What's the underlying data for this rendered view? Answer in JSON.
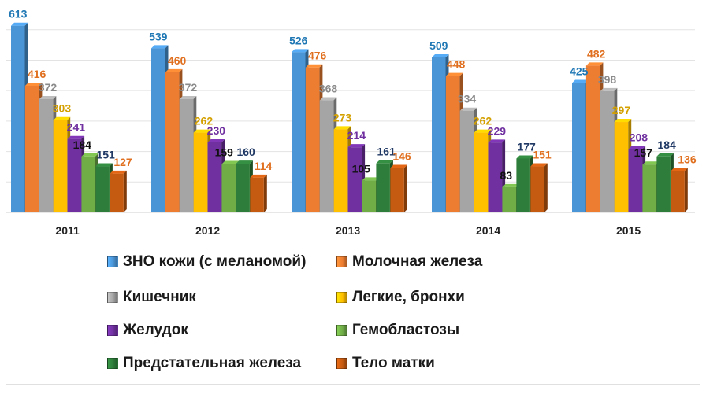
{
  "chart_data": {
    "type": "bar",
    "categories": [
      "2011",
      "2012",
      "2013",
      "2014",
      "2015"
    ],
    "series": [
      {
        "name": "ЗНО  кожи (с меланомой)",
        "color": "#4a95d6",
        "label_color": "#1f77b4",
        "values": [
          613,
          539,
          526,
          509,
          425
        ]
      },
      {
        "name": "Молочная железа",
        "color": "#ed7d31",
        "label_color": "#e07020",
        "values": [
          416,
          460,
          476,
          448,
          482
        ]
      },
      {
        "name": "Кишечник",
        "color": "#a5a5a5",
        "label_color": "#8a8a8a",
        "values": [
          372,
          372,
          368,
          334,
          398
        ]
      },
      {
        "name": "Легкие, бронхи",
        "color": "#ffc000",
        "label_color": "#d4a000",
        "values": [
          303,
          262,
          273,
          262,
          297
        ]
      },
      {
        "name": "Желудок",
        "color": "#7030a0",
        "label_color": "#7030a0",
        "values": [
          241,
          230,
          214,
          229,
          208
        ]
      },
      {
        "name": "Гемобластозы",
        "color": "#70ad47",
        "label_color": "#111111",
        "values": [
          184,
          159,
          105,
          83,
          157
        ]
      },
      {
        "name": "Предстательная железа",
        "color": "#2e7d3a",
        "label_color": "#1f3864",
        "values": [
          151,
          160,
          161,
          177,
          184
        ]
      },
      {
        "name": "Тело матки",
        "color": "#c55a11",
        "label_color": "#e07020",
        "values": [
          127,
          114,
          146,
          151,
          136
        ]
      }
    ],
    "ylim": [
      0,
      620
    ],
    "grid": true,
    "title": "",
    "xlabel": "",
    "ylabel": "",
    "legend_position": "bottom"
  }
}
